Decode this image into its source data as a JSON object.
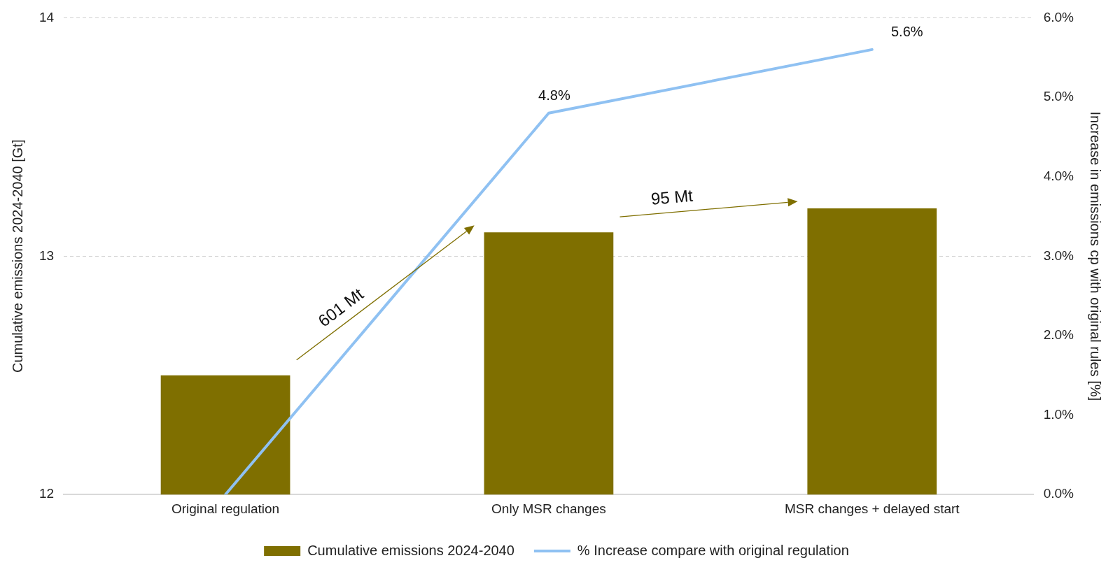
{
  "chart_data": {
    "type": "bar",
    "categories": [
      "Original regulation",
      "Only MSR changes",
      "MSR changes + delayed start"
    ],
    "series": [
      {
        "name": "Cumulative emissions 2024-2040",
        "color": "#7f6f00",
        "values": [
          12.5,
          13.1,
          13.2
        ]
      },
      {
        "name": "% Increase compare with original regulation",
        "type": "line",
        "axis": "y2",
        "color": "#8fc1f2",
        "values": [
          0,
          4.8,
          5.6
        ],
        "value_labels": [
          null,
          "4.8%",
          "5.6%"
        ]
      }
    ],
    "ylabel": "Cumulative emissions 2024-2040 [Gt]",
    "y2label": "Increase in emissions cp with original rules [%]",
    "ylim": [
      12,
      14
    ],
    "yticks": [
      12,
      13,
      14
    ],
    "y2lim": [
      0,
      6
    ],
    "y2ticks": [
      {
        "value": 0,
        "label": "0.0%"
      },
      {
        "value": 1,
        "label": "1.0%"
      },
      {
        "value": 2,
        "label": "2.0%"
      },
      {
        "value": 3,
        "label": "3.0%"
      },
      {
        "value": 4,
        "label": "4.0%"
      },
      {
        "value": 5,
        "label": "5.0%"
      },
      {
        "value": 6,
        "label": "6.0%"
      }
    ],
    "grid": "y",
    "legend": "bottom",
    "marker": "none",
    "annotations": [
      "601 Mt",
      "95 Mt"
    ]
  }
}
